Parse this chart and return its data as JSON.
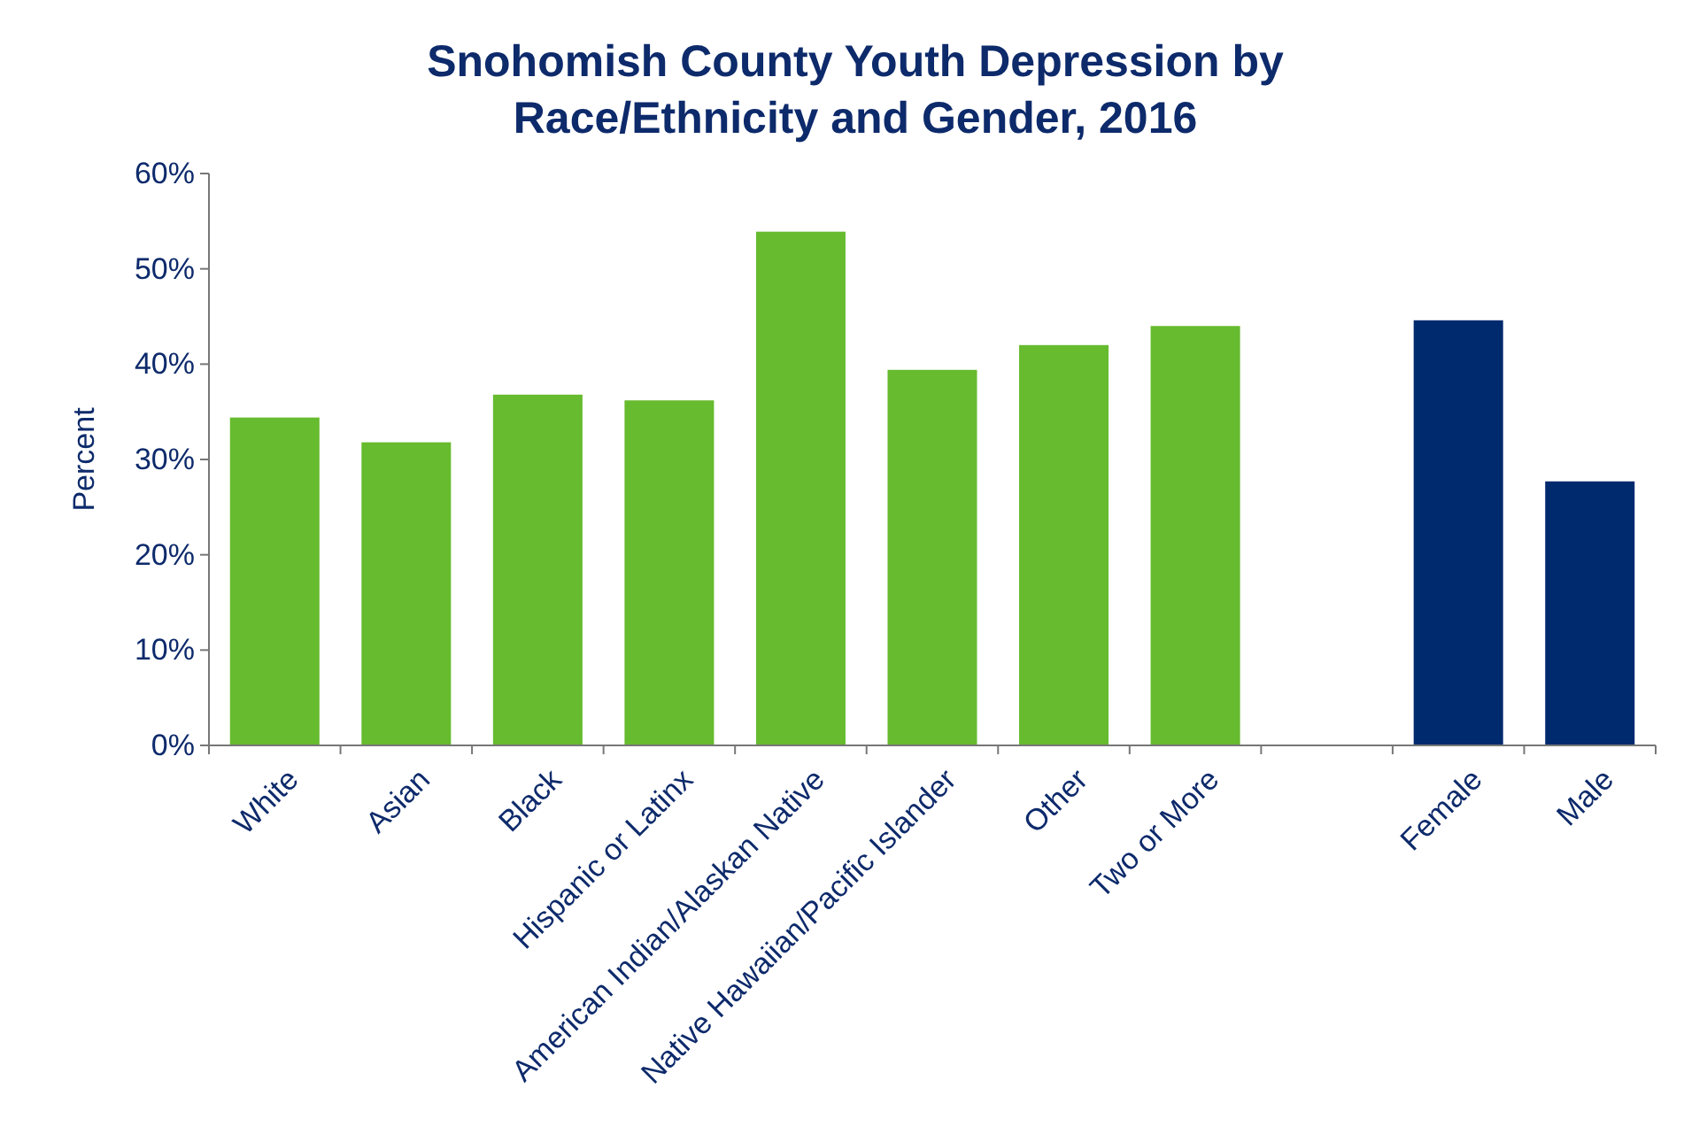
{
  "chart_data": {
    "type": "bar",
    "title": "Snohomish County Youth Depression by Race/Ethnicity and Gender, 2016",
    "ylabel": "Percent",
    "categories": [
      "White",
      "Asian",
      "Black",
      "Hispanic or Latinx",
      "American Indian/Alaskan Native",
      "Native Hawaiian/Pacific Islander",
      "Other",
      "Two or More",
      null,
      "Female",
      "Male"
    ],
    "values": [
      34.4,
      31.8,
      36.8,
      36.2,
      53.9,
      39.4,
      42.0,
      44.0,
      null,
      44.6,
      27.7
    ],
    "colors": [
      "#66bb2e",
      "#66bb2e",
      "#66bb2e",
      "#66bb2e",
      "#66bb2e",
      "#66bb2e",
      "#66bb2e",
      "#66bb2e",
      null,
      "#002a6e",
      "#002a6e"
    ],
    "ylim": [
      0,
      60
    ],
    "yticks": [
      {
        "value": 0,
        "label": "0%"
      },
      {
        "value": 10,
        "label": "10%"
      },
      {
        "value": 20,
        "label": "20%"
      },
      {
        "value": 30,
        "label": "30%"
      },
      {
        "value": 40,
        "label": "40%"
      },
      {
        "value": 50,
        "label": "50%"
      },
      {
        "value": 60,
        "label": "60%"
      }
    ],
    "grid": false
  }
}
